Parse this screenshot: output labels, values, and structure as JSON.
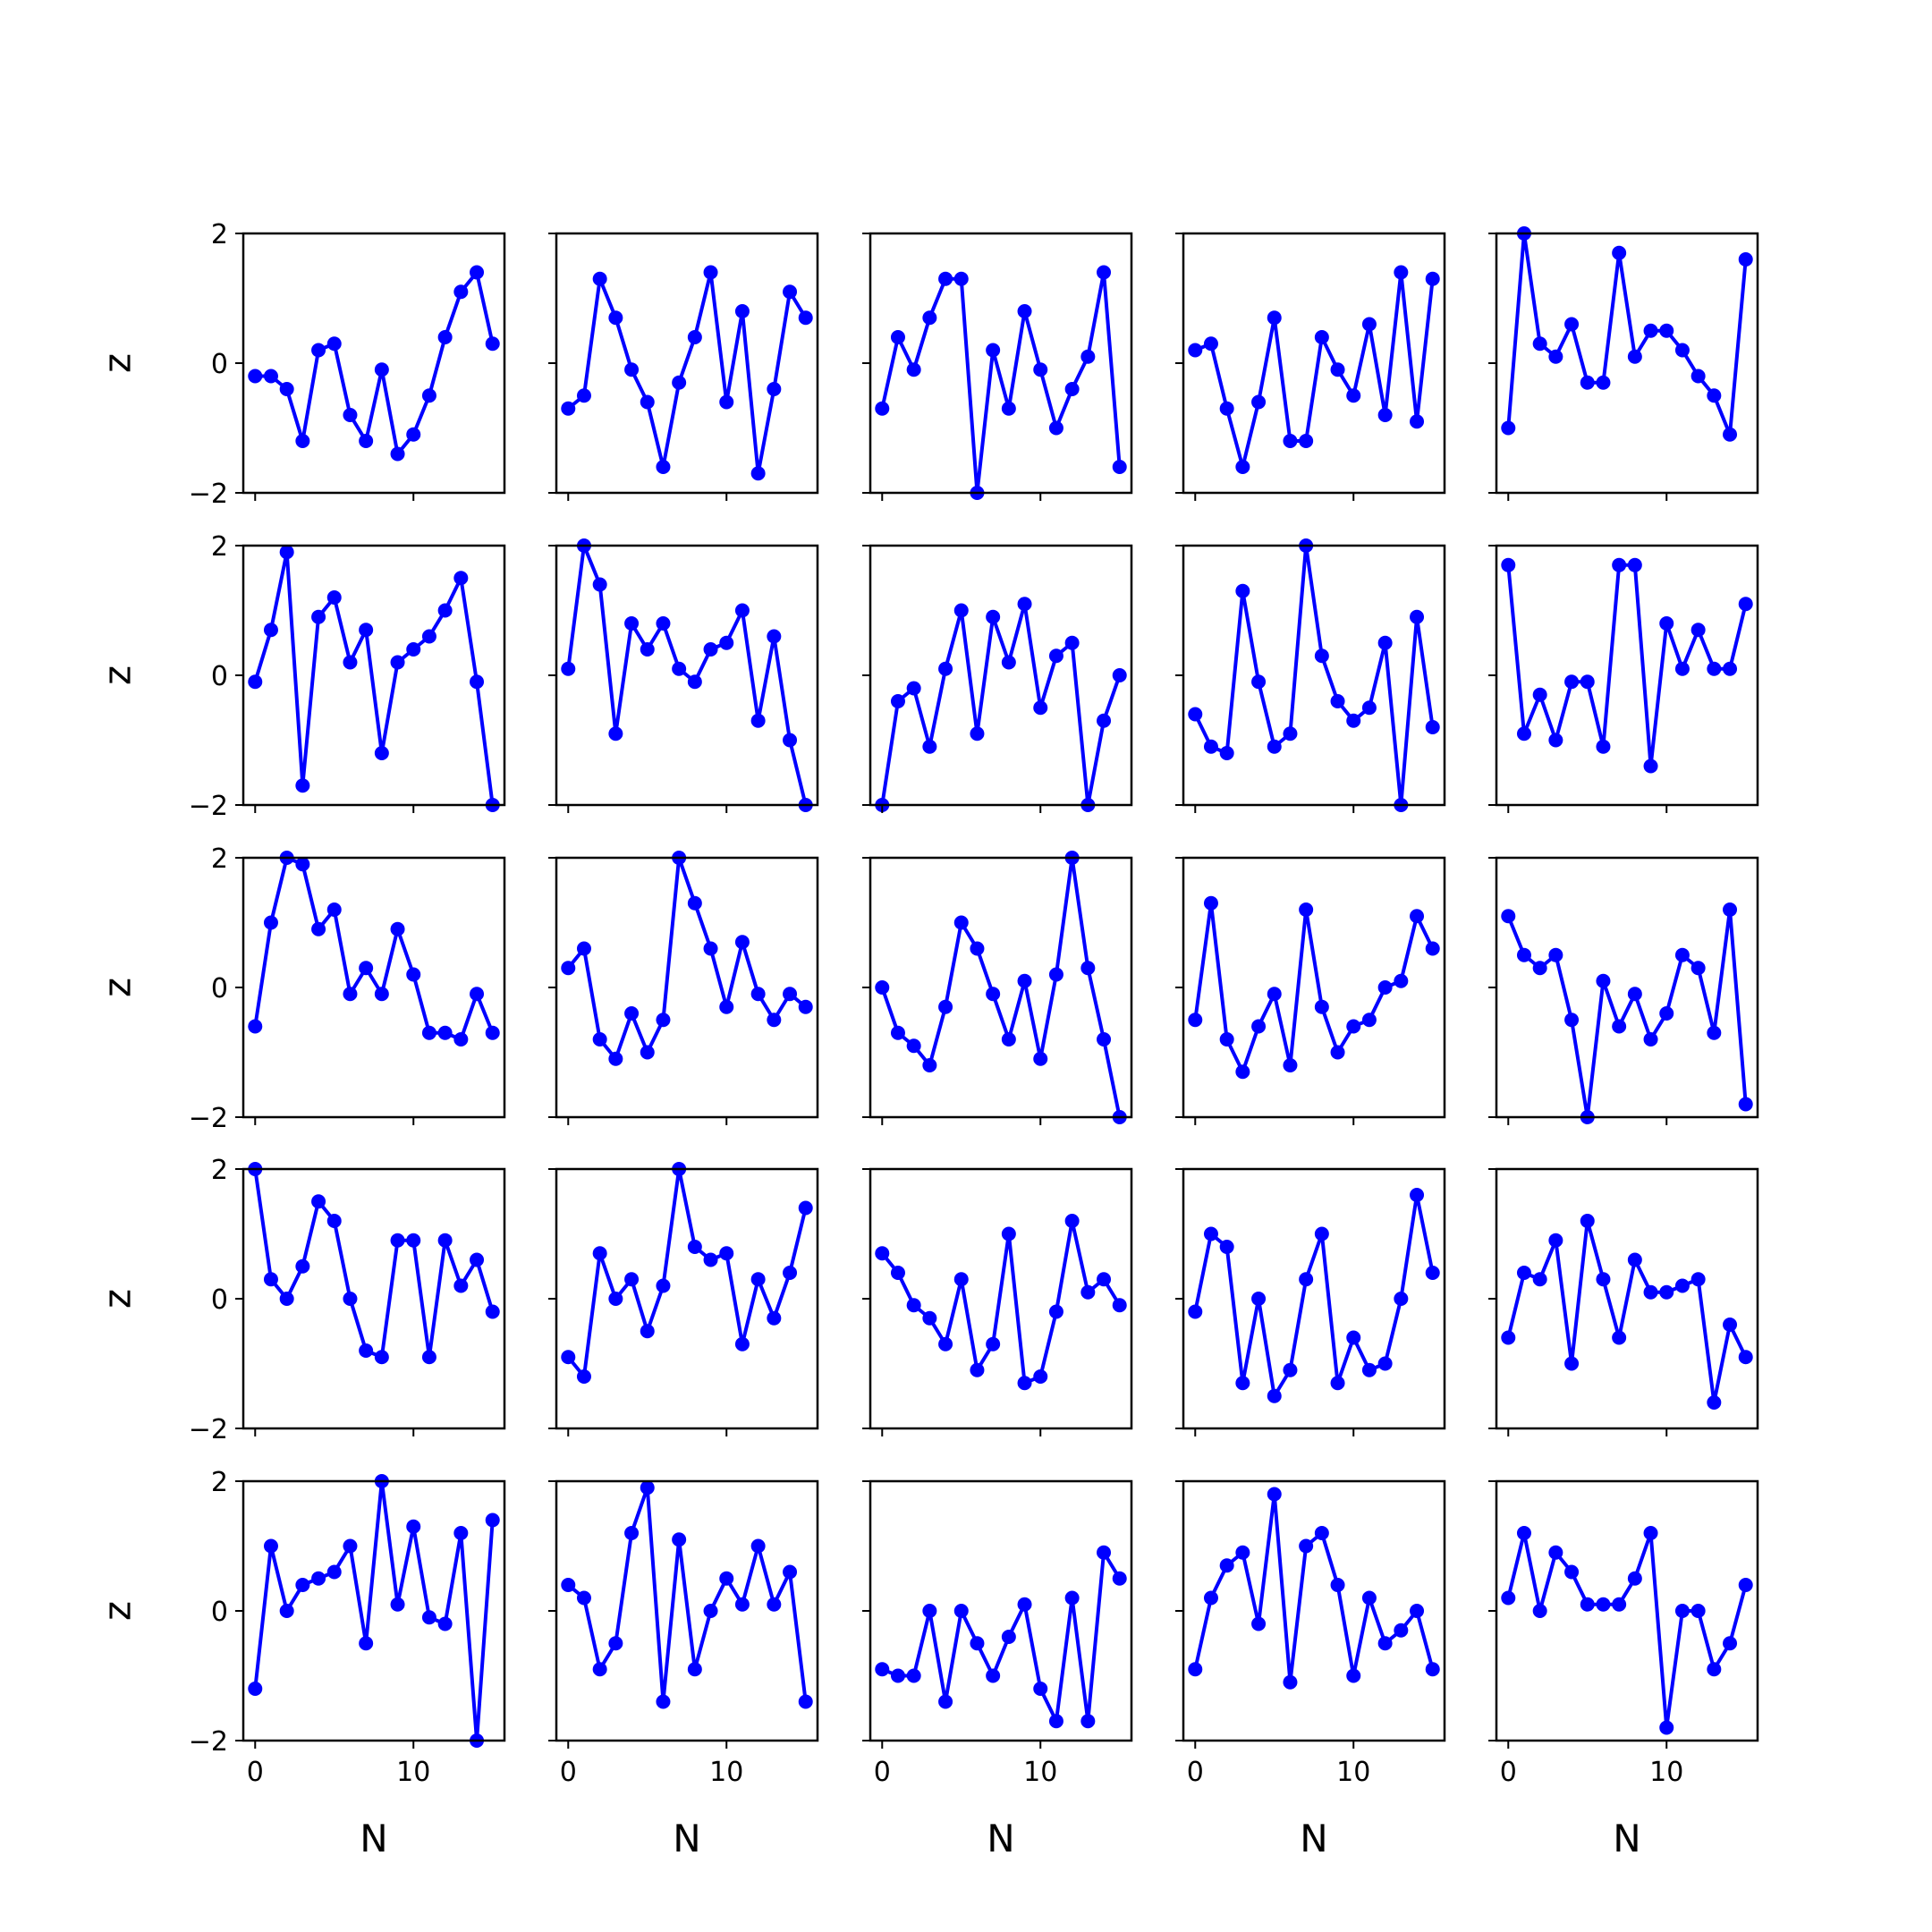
{
  "chart_data": {
    "type": "line",
    "layout": {
      "rows": 5,
      "cols": 5,
      "sharex": true,
      "sharey": true
    },
    "xlabel": "N",
    "ylabel": "z",
    "xlim": [
      -0.75,
      15.75
    ],
    "ylim": [
      -2,
      2
    ],
    "xticks": [
      0,
      10
    ],
    "yticks": [
      -2,
      0,
      2
    ],
    "xtick_labels": [
      "0",
      "10"
    ],
    "ytick_labels": [
      "−2",
      "0",
      "2"
    ],
    "grid": false,
    "legend": "none",
    "line_color": "#0000ff",
    "x": [
      0,
      1,
      2,
      3,
      4,
      5,
      6,
      7,
      8,
      9,
      10,
      11,
      12,
      13,
      14,
      15
    ],
    "panels": [
      [
        -0.2,
        -0.2,
        -0.4,
        -1.2,
        0.2,
        0.3,
        -0.8,
        -1.2,
        -0.1,
        -1.4,
        -1.1,
        -0.5,
        0.4,
        1.1,
        1.4,
        0.3
      ],
      [
        -0.7,
        -0.5,
        1.3,
        0.7,
        -0.1,
        -0.6,
        -1.6,
        -0.3,
        0.4,
        1.4,
        -0.6,
        0.8,
        -1.7,
        -0.4,
        1.1,
        0.7
      ],
      [
        -0.7,
        0.4,
        -0.1,
        0.7,
        1.3,
        1.3,
        -2.0,
        0.2,
        -0.7,
        0.8,
        -0.1,
        -1.0,
        -0.4,
        0.1,
        1.4,
        -1.6
      ],
      [
        0.2,
        0.3,
        -0.7,
        -1.6,
        -0.6,
        0.7,
        -1.2,
        -1.2,
        0.4,
        -0.1,
        -0.5,
        0.6,
        -0.8,
        1.4,
        -0.9,
        1.3
      ],
      [
        -1.0,
        2.0,
        0.3,
        0.1,
        0.6,
        -0.3,
        -0.3,
        1.7,
        0.1,
        0.5,
        0.5,
        0.2,
        -0.2,
        -0.5,
        -1.1,
        1.6
      ],
      [
        -0.1,
        0.7,
        1.9,
        -1.7,
        0.9,
        1.2,
        0.2,
        0.7,
        -1.2,
        0.2,
        0.4,
        0.6,
        1.0,
        1.5,
        -0.1,
        -2.0
      ],
      [
        0.1,
        2.0,
        1.4,
        -0.9,
        0.8,
        0.4,
        0.8,
        0.1,
        -0.1,
        0.4,
        0.5,
        1.0,
        -0.7,
        0.6,
        -1.0,
        -2.0
      ],
      [
        -2.0,
        -0.4,
        -0.2,
        -1.1,
        0.1,
        1.0,
        -0.9,
        0.9,
        0.2,
        1.1,
        -0.5,
        0.3,
        0.5,
        -2.0,
        -0.7,
        0.0
      ],
      [
        -0.6,
        -1.1,
        -1.2,
        1.3,
        -0.1,
        -1.1,
        -0.9,
        2.0,
        0.3,
        -0.4,
        -0.7,
        -0.5,
        0.5,
        -2.0,
        0.9,
        -0.8
      ],
      [
        1.7,
        -0.9,
        -0.3,
        -1.0,
        -0.1,
        -0.1,
        -1.1,
        1.7,
        1.7,
        -1.4,
        0.8,
        0.1,
        0.7,
        0.1,
        0.1,
        1.1
      ],
      [
        -0.6,
        1.0,
        2.0,
        1.9,
        0.9,
        1.2,
        -0.1,
        0.3,
        -0.1,
        0.9,
        0.2,
        -0.7,
        -0.7,
        -0.8,
        -0.1,
        -0.7
      ],
      [
        0.3,
        0.6,
        -0.8,
        -1.1,
        -0.4,
        -1.0,
        -0.5,
        2.0,
        1.3,
        0.6,
        -0.3,
        0.7,
        -0.1,
        -0.5,
        -0.1,
        -0.3
      ],
      [
        0.0,
        -0.7,
        -0.9,
        -1.2,
        -0.3,
        1.0,
        0.6,
        -0.1,
        -0.8,
        0.1,
        -1.1,
        0.2,
        2.0,
        0.3,
        -0.8,
        -2.0
      ],
      [
        -0.5,
        1.3,
        -0.8,
        -1.3,
        -0.6,
        -0.1,
        -1.2,
        1.2,
        -0.3,
        -1.0,
        -0.6,
        -0.5,
        0.0,
        0.1,
        1.1,
        0.6
      ],
      [
        1.1,
        0.5,
        0.3,
        0.5,
        -0.5,
        -2.0,
        0.1,
        -0.6,
        -0.1,
        -0.8,
        -0.4,
        0.5,
        0.3,
        -0.7,
        1.2,
        -1.8
      ],
      [
        2.0,
        0.3,
        0.0,
        0.5,
        1.5,
        1.2,
        0.0,
        -0.8,
        -0.9,
        0.9,
        0.9,
        -0.9,
        0.9,
        0.2,
        0.6,
        -0.2
      ],
      [
        -0.9,
        -1.2,
        0.7,
        0.0,
        0.3,
        -0.5,
        0.2,
        2.0,
        0.8,
        0.6,
        0.7,
        -0.7,
        0.3,
        -0.3,
        0.4,
        1.4
      ],
      [
        0.7,
        0.4,
        -0.1,
        -0.3,
        -0.7,
        0.3,
        -1.1,
        -0.7,
        1.0,
        -1.3,
        -1.2,
        -0.2,
        1.2,
        0.1,
        0.3,
        -0.1
      ],
      [
        -0.2,
        1.0,
        0.8,
        -1.3,
        0.0,
        -1.5,
        -1.1,
        0.3,
        1.0,
        -1.3,
        -0.6,
        -1.1,
        -1.0,
        0.0,
        1.6,
        0.4
      ],
      [
        -0.6,
        0.4,
        0.3,
        0.9,
        -1.0,
        1.2,
        0.3,
        -0.6,
        0.6,
        0.1,
        0.1,
        0.2,
        0.3,
        -1.6,
        -0.4,
        -0.9
      ],
      [
        -1.2,
        1.0,
        0.0,
        0.4,
        0.5,
        0.6,
        1.0,
        -0.5,
        2.0,
        0.1,
        1.3,
        -0.1,
        -0.2,
        1.2,
        -2.0,
        1.4
      ],
      [
        0.4,
        0.2,
        -0.9,
        -0.5,
        1.2,
        1.9,
        -1.4,
        1.1,
        -0.9,
        0.0,
        0.5,
        0.1,
        1.0,
        0.1,
        0.6,
        -1.4
      ],
      [
        -0.9,
        -1.0,
        -1.0,
        0.0,
        -1.4,
        0.0,
        -0.5,
        -1.0,
        -0.4,
        0.1,
        -1.2,
        -1.7,
        0.2,
        -1.7,
        0.9,
        0.5
      ],
      [
        -0.9,
        0.2,
        0.7,
        0.9,
        -0.2,
        1.8,
        -1.1,
        1.0,
        1.2,
        0.4,
        -1.0,
        0.2,
        -0.5,
        -0.3,
        0.0,
        -0.9
      ],
      [
        0.2,
        1.2,
        0.0,
        0.9,
        0.6,
        0.1,
        0.1,
        0.1,
        0.5,
        1.2,
        -1.8,
        0.0,
        0.0,
        -0.9,
        -0.5,
        0.4
      ]
    ]
  }
}
